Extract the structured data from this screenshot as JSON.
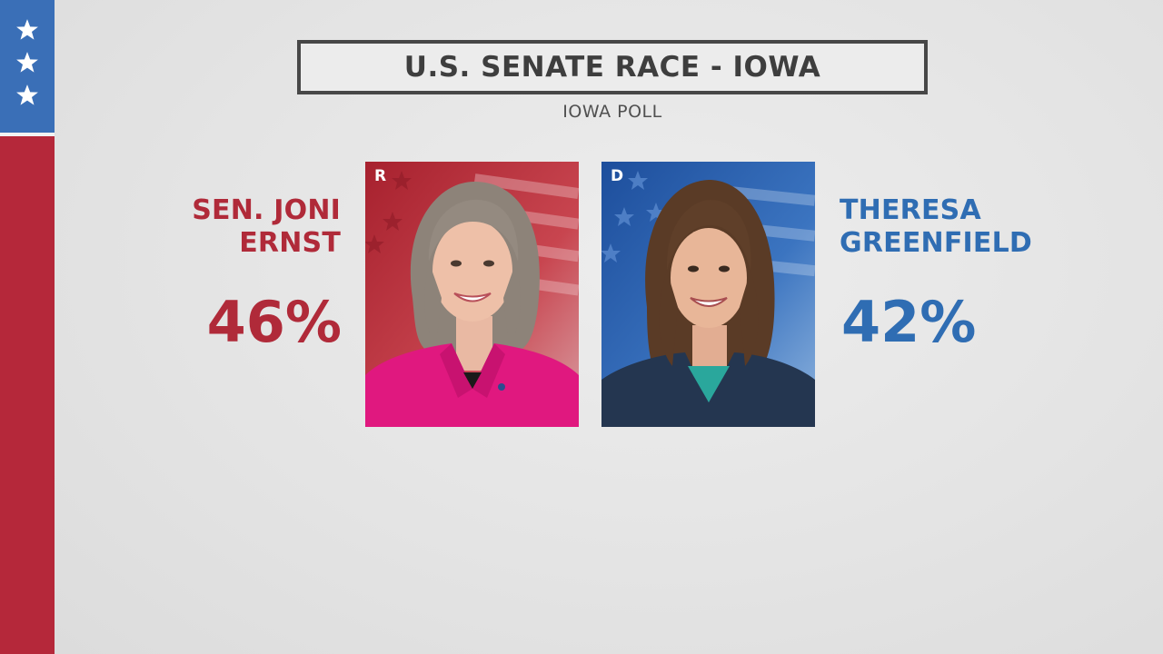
{
  "header": {
    "title": "U.S. SENATE RACE - IOWA",
    "subtitle": "IOWA POLL"
  },
  "candidates": [
    {
      "name_line1": "SEN. JONI",
      "name_line2": "ERNST",
      "party": "R",
      "percent": "46%",
      "color": "#b02a39"
    },
    {
      "name_line1": "THERESA",
      "name_line2": "GREENFIELD",
      "party": "D",
      "percent": "42%",
      "color": "#2f6db3"
    }
  ],
  "theme": {
    "flag_blue": "#3a6fb7",
    "flag_red": "#b5283a",
    "background": "#e5e5e5"
  }
}
